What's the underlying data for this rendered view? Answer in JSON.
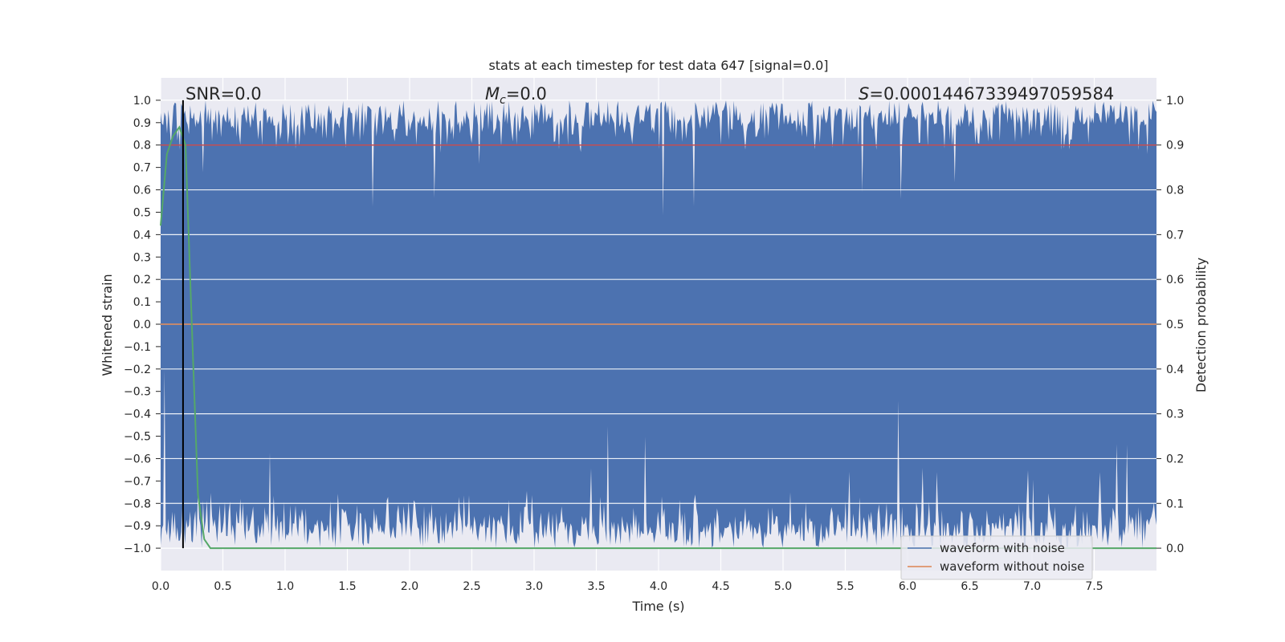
{
  "chart_data": {
    "type": "line",
    "title": "stats at each timestep for test data 647 [signal=0.0]",
    "xlabel": "Time (s)",
    "ylabel": "Whitened strain",
    "ylabel_right": "Detection probability",
    "xlim": [
      0.0,
      8.0
    ],
    "ylim": [
      -1.1,
      1.1
    ],
    "ylim_right": [
      -0.05,
      1.05
    ],
    "xticks": [
      "0.0",
      "0.5",
      "1.0",
      "1.5",
      "2.0",
      "2.5",
      "3.0",
      "3.5",
      "4.0",
      "4.5",
      "5.0",
      "5.5",
      "6.0",
      "6.5",
      "7.0",
      "7.5"
    ],
    "xtick_values": [
      0,
      0.5,
      1,
      1.5,
      2,
      2.5,
      3,
      3.5,
      4,
      4.5,
      5,
      5.5,
      6,
      6.5,
      7,
      7.5
    ],
    "yticks": [
      "1.0",
      "0.9",
      "0.8",
      "0.7",
      "0.6",
      "0.5",
      "0.4",
      "0.3",
      "0.2",
      "0.1",
      "0.0",
      "−0.1",
      "−0.2",
      "−0.3",
      "−0.4",
      "−0.5",
      "−0.6",
      "−0.7",
      "−0.8",
      "−0.9",
      "−1.0"
    ],
    "ytick_values": [
      1,
      0.9,
      0.8,
      0.7,
      0.6,
      0.5,
      0.4,
      0.3,
      0.2,
      0.1,
      0,
      -0.1,
      -0.2,
      -0.3,
      -0.4,
      -0.5,
      -0.6,
      -0.7,
      -0.8,
      -0.9,
      -1.0
    ],
    "yticks_right": [
      "1.0",
      "0.9",
      "0.8",
      "0.7",
      "0.6",
      "0.5",
      "0.4",
      "0.3",
      "0.2",
      "0.1",
      "0.0"
    ],
    "ytick_right_values": [
      1,
      0.9,
      0.8,
      0.7,
      0.6,
      0.5,
      0.4,
      0.3,
      0.2,
      0.1,
      0
    ],
    "annotations": {
      "snr": "SNR=0.0",
      "mc_symbol": "M",
      "mc_sub": "c",
      "mc_value": "=0.0",
      "s_symbol": "S",
      "s_value": "=0.00014467339497059584"
    },
    "series": [
      {
        "name": "waveform with noise",
        "color": "#4c72b0",
        "description": "dense whitened noise spanning approximately -1.0 to 1.0 across 0-8 s"
      },
      {
        "name": "waveform without noise",
        "color": "#dd8452",
        "values_constant": 0.0
      },
      {
        "name": "detection probability",
        "color": "#55a868",
        "axis": "right",
        "x": [
          0.0,
          0.05,
          0.1,
          0.15,
          0.2,
          0.25,
          0.3,
          0.35,
          0.4,
          8.0
        ],
        "y": [
          0.72,
          0.88,
          0.92,
          0.94,
          0.9,
          0.5,
          0.12,
          0.02,
          0.0,
          0.0
        ]
      }
    ],
    "threshold_line": {
      "y_right": 0.9,
      "color": "#c44e52"
    },
    "vertical_marker": {
      "x": 0.18,
      "color": "#000000"
    },
    "legend": {
      "location": "lower right",
      "entries": [
        "waveform with noise",
        "waveform without noise"
      ]
    },
    "grid": true
  }
}
